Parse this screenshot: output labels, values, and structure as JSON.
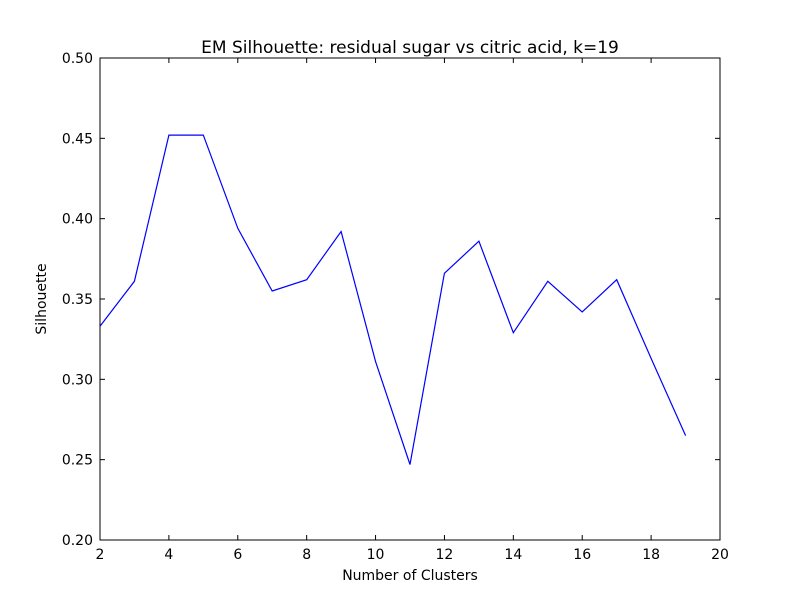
{
  "chart_data": {
    "type": "line",
    "title": "EM Silhouette: residual sugar vs citric acid, k=19",
    "xlabel": "Number of Clusters",
    "ylabel": "Silhouette",
    "xlim": [
      2,
      20
    ],
    "ylim": [
      0.2,
      0.5
    ],
    "xticks": [
      2,
      4,
      6,
      8,
      10,
      12,
      14,
      16,
      18,
      20
    ],
    "yticks": [
      0.2,
      0.25,
      0.3,
      0.35,
      0.4,
      0.45,
      0.5
    ],
    "grid": false,
    "series": [
      {
        "color": "#0000ff",
        "x": [
          2,
          3,
          4,
          5,
          6,
          7,
          8,
          9,
          10,
          11,
          12,
          13,
          14,
          15,
          16,
          17,
          18,
          19
        ],
        "y": [
          0.333,
          0.361,
          0.452,
          0.452,
          0.394,
          0.355,
          0.362,
          0.392,
          0.311,
          0.247,
          0.366,
          0.386,
          0.329,
          0.361,
          0.342,
          0.362,
          0.313,
          0.265
        ]
      }
    ]
  }
}
